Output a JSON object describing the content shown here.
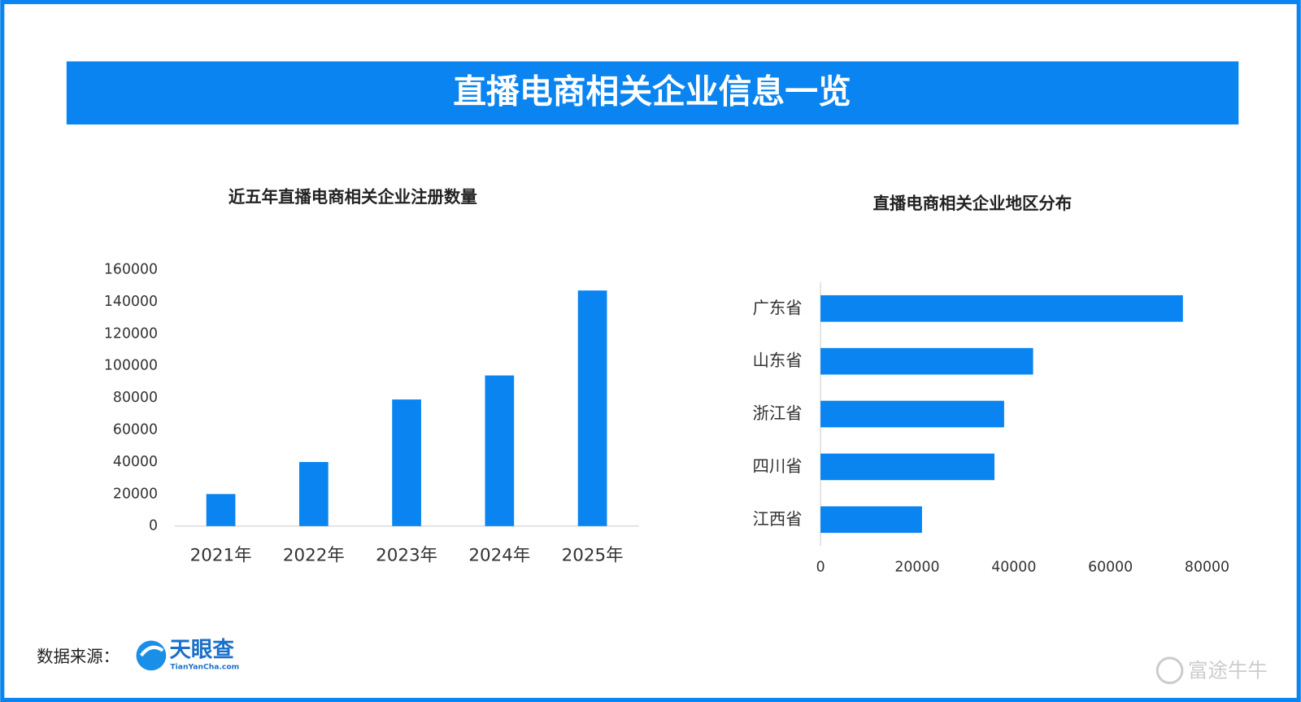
{
  "title": "直播电商相关企业信息一览",
  "chart_data": [
    {
      "type": "bar",
      "orientation": "vertical",
      "title": "近五年直播电商相关企业注册数量",
      "categories": [
        "2021年",
        "2022年",
        "2023年",
        "2024年",
        "2025年"
      ],
      "values": [
        20000,
        40000,
        79000,
        94000,
        147000
      ],
      "color": "#0a84f0",
      "ylim": [
        0,
        160000
      ],
      "yticks": [
        0,
        20000,
        40000,
        60000,
        80000,
        100000,
        120000,
        140000,
        160000
      ],
      "grid": false
    },
    {
      "type": "bar",
      "orientation": "horizontal",
      "title": "直播电商相关企业地区分布",
      "categories": [
        "广东省",
        "山东省",
        "浙江省",
        "四川省",
        "江西省"
      ],
      "values": [
        75000,
        44000,
        38000,
        36000,
        21000
      ],
      "color": "#0a84f0",
      "xlim": [
        0,
        80000
      ],
      "xticks": [
        0,
        20000,
        40000,
        60000,
        80000
      ],
      "grid": false
    }
  ],
  "footer": {
    "source_label": "数据来源：",
    "logo_text": "天眼查",
    "logo_url": "TianYanCha.com",
    "watermark": "富途牛牛"
  }
}
